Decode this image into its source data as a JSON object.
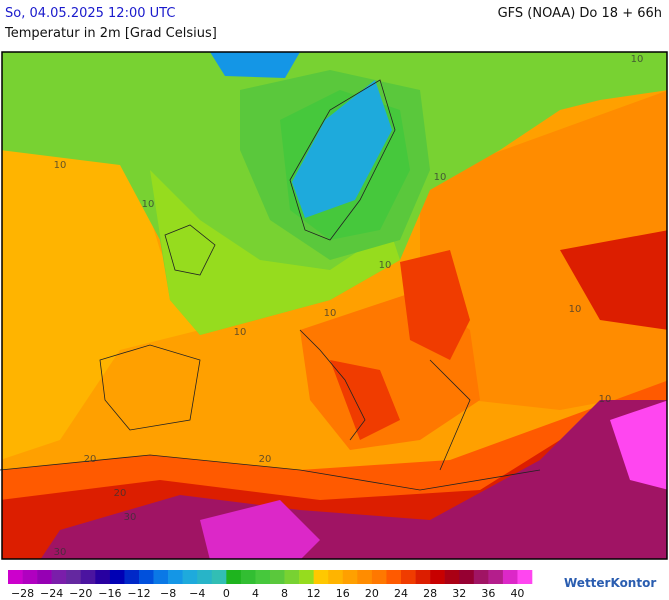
{
  "header": {
    "date": "So, 04.05.2025 12:00 UTC",
    "model": "GFS (NOAA) Do 18 + 66h",
    "subtitle": "Temperatur in 2m [Grad Celsius]"
  },
  "map": {
    "contour_labels": [
      "10",
      "10",
      "10",
      "10",
      "10",
      "10",
      "10",
      "10",
      "20",
      "20",
      "20",
      "30",
      "30",
      "10"
    ]
  },
  "legend": {
    "colors": [
      "#cc00cc",
      "#b000c0",
      "#9600b4",
      "#7a1eaa",
      "#6428a0",
      "#4b14a0",
      "#2800a0",
      "#0000b4",
      "#0028c8",
      "#0050dc",
      "#0a78e6",
      "#1496e6",
      "#1eaadc",
      "#28b4c8",
      "#32beb4",
      "#1eb41e",
      "#32be32",
      "#46c83c",
      "#5ac83c",
      "#78d232",
      "#96dc1e",
      "#ffc800",
      "#ffb400",
      "#ffa000",
      "#ff8c00",
      "#ff7800",
      "#ff5a00",
      "#f03c00",
      "#dc1e00",
      "#c80000",
      "#aa0014",
      "#960032",
      "#a01464",
      "#b41e8c",
      "#dc28c8",
      "#ff46f0"
    ],
    "ticks": [
      "−28",
      "−24",
      "−20",
      "−16",
      "−12",
      "−8",
      "−4",
      "0",
      "4",
      "8",
      "12",
      "16",
      "20",
      "24",
      "28",
      "32",
      "36",
      "40"
    ]
  },
  "logo": "WetterKontor"
}
